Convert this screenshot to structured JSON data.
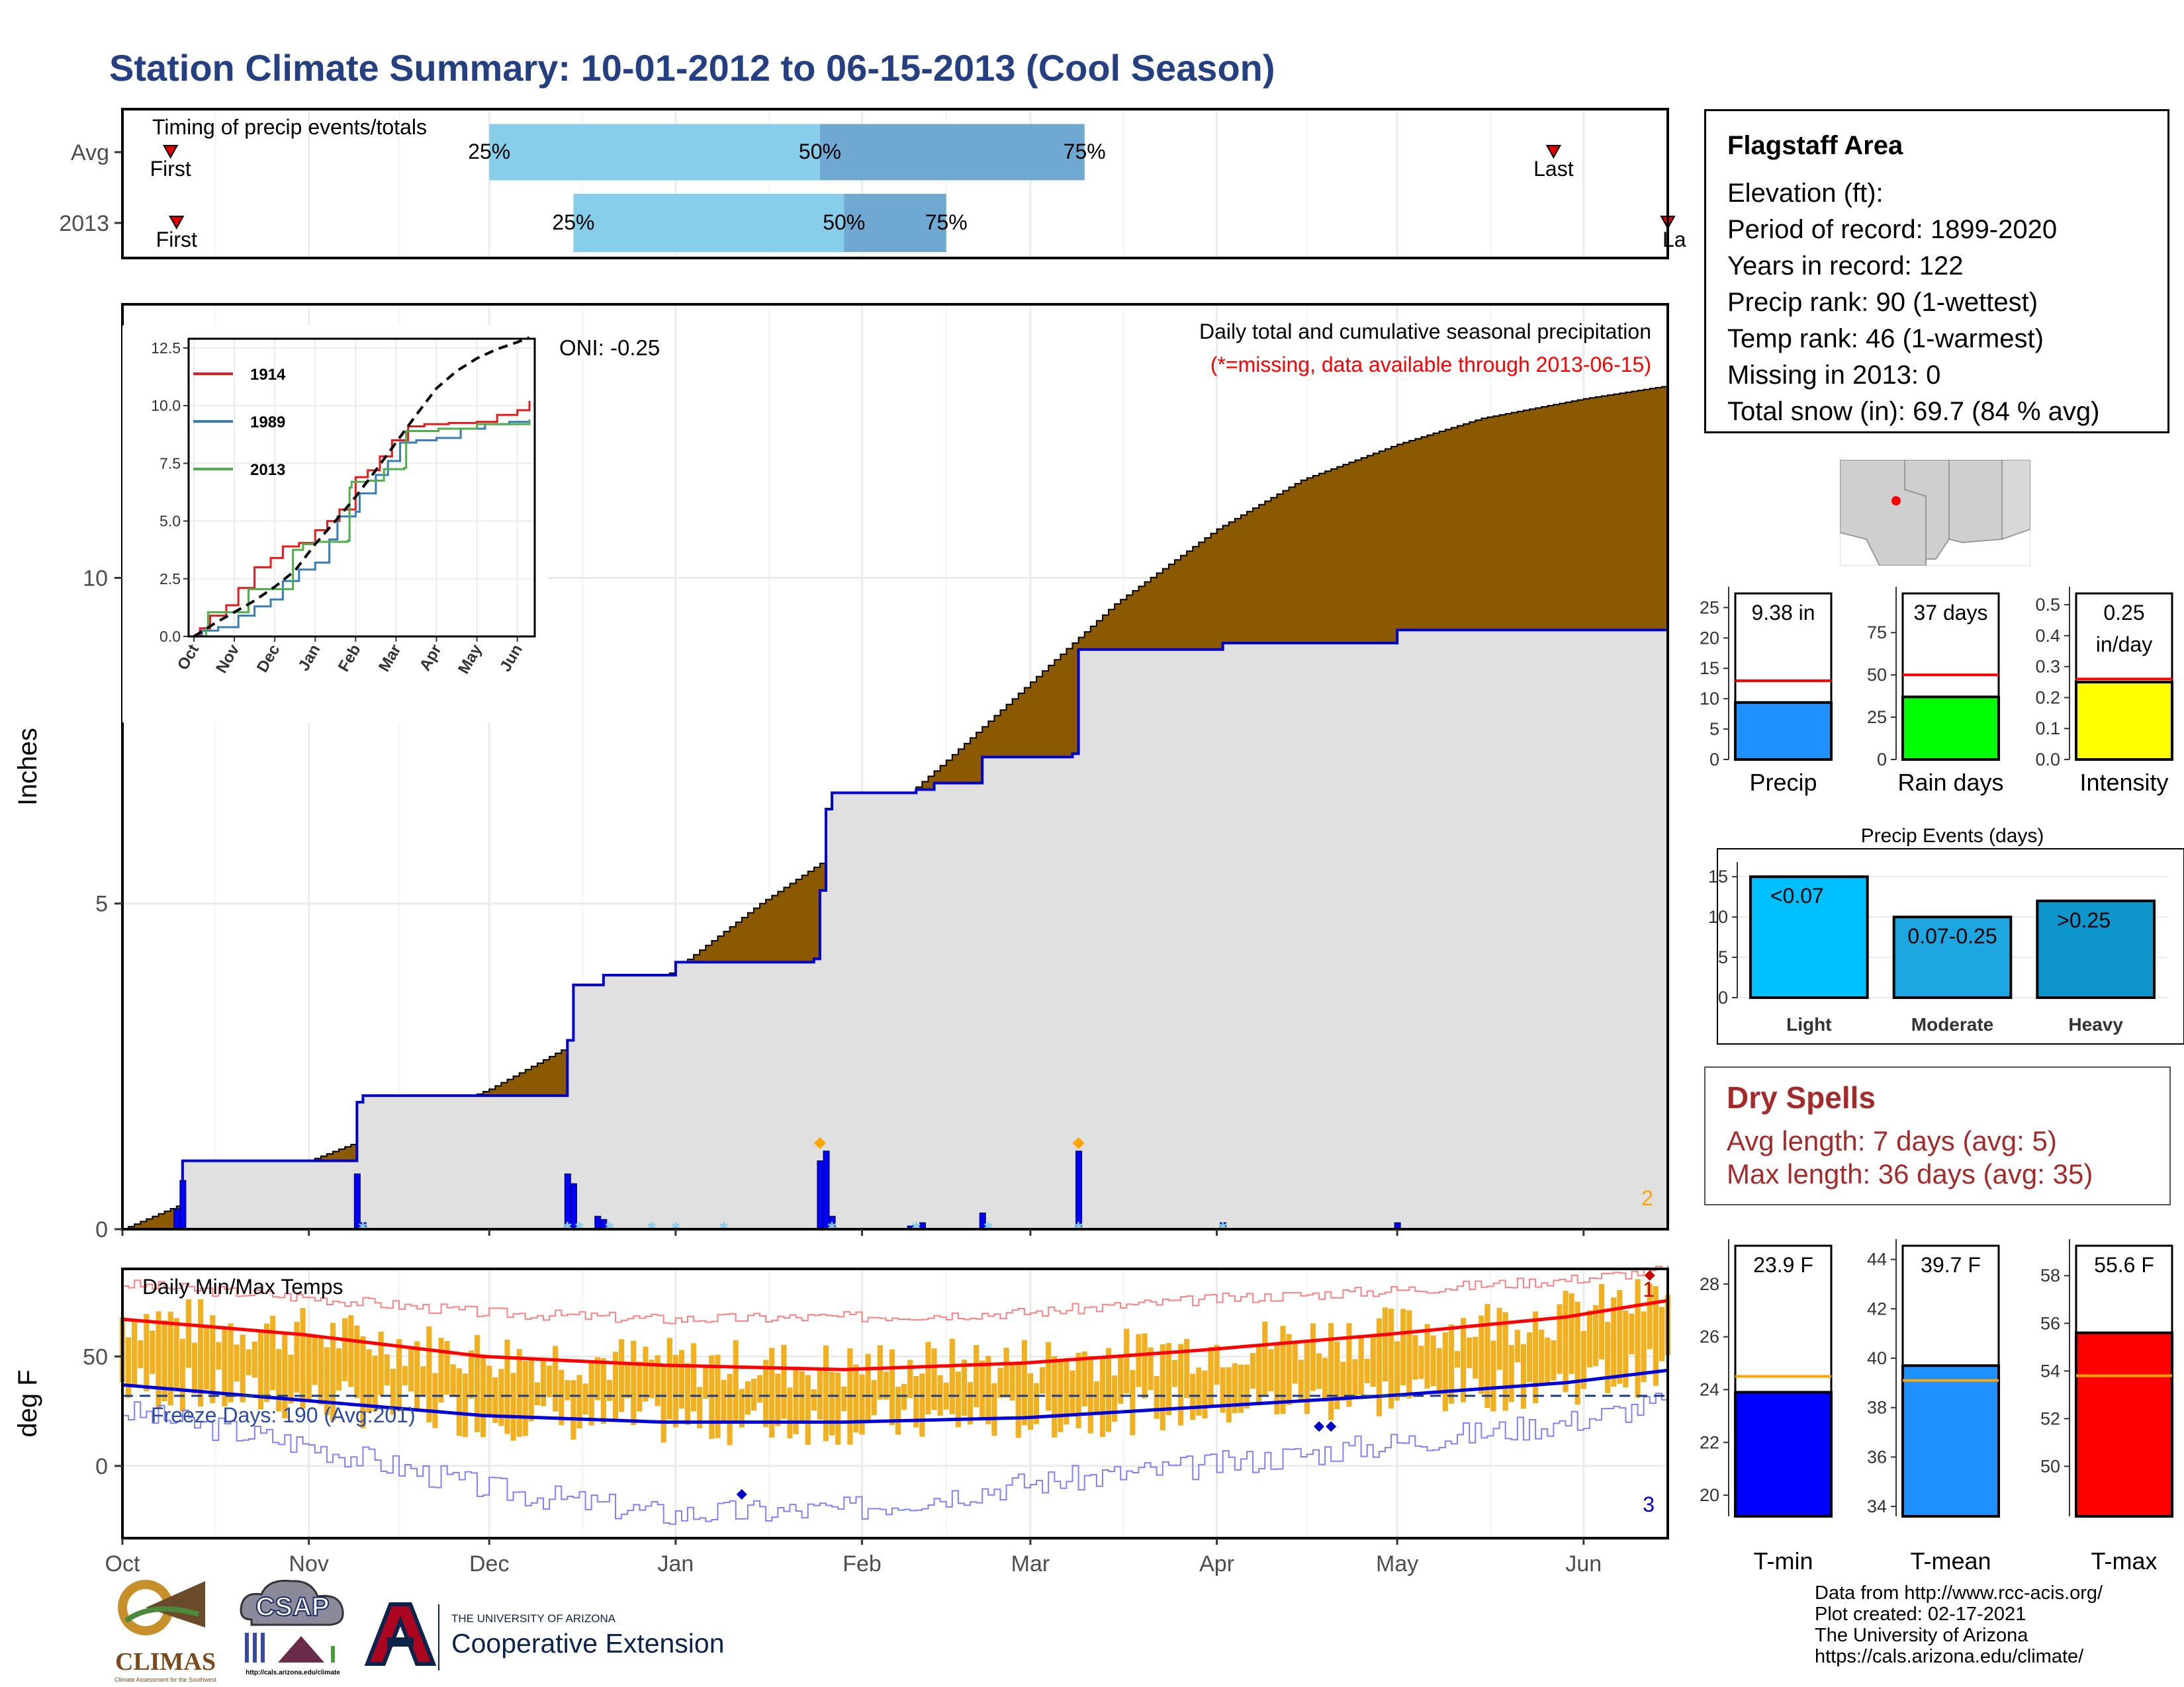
{
  "title": "Station Climate Summary: 10-01-2012 to 06-15-2013 (Cool Season)",
  "timing": {
    "panel_label": "Timing of precip events/totals",
    "rows": [
      {
        "label": "Avg",
        "first": "2012-10-09",
        "p25": "2012-12-01",
        "p50": "2013-01-25",
        "p75": "2013-03-10",
        "last": "2013-05-27"
      },
      {
        "label": "2013",
        "first": "2012-10-10",
        "p25": "2012-12-15",
        "p50": "2013-01-29",
        "p75": "2013-02-15",
        "last": "2013-06-15"
      }
    ],
    "first_label": "First",
    "last_label": "Last",
    "last_label_clipped": "La",
    "p25_label": "25%",
    "p50_label": "50%",
    "p75_label": "75%",
    "colors": {
      "q1": "#87ceeb",
      "q2": "#6fa8d0",
      "marker": "#e00000"
    }
  },
  "chart_data": [
    {
      "type": "area",
      "name": "precip",
      "title": "Daily total and cumulative seasonal precipitation",
      "subtitle": "(*=missing, data available through 2013-06-15)",
      "annotation": "ONI: -0.25",
      "corner_count": "2",
      "ylabel": "Inches",
      "ylim": [
        0,
        14.2
      ],
      "yticks": [
        0,
        5,
        10
      ],
      "x_start": "2012-10-01",
      "x_end": "2013-06-15",
      "avg_cumulative": [
        [
          "2012-10-01",
          0
        ],
        [
          "2012-10-15",
          0.55
        ],
        [
          "2012-11-01",
          1.05
        ],
        [
          "2012-11-15",
          1.55
        ],
        [
          "2012-12-01",
          2.15
        ],
        [
          "2012-12-15",
          2.85
        ],
        [
          "2013-01-01",
          4.0
        ],
        [
          "2013-01-15",
          5.0
        ],
        [
          "2013-02-01",
          6.05
        ],
        [
          "2013-02-15",
          7.2
        ],
        [
          "2013-03-01",
          8.4
        ],
        [
          "2013-03-15",
          9.6
        ],
        [
          "2013-04-01",
          10.75
        ],
        [
          "2013-04-15",
          11.5
        ],
        [
          "2013-05-01",
          12.05
        ],
        [
          "2013-05-15",
          12.45
        ],
        [
          "2013-06-01",
          12.75
        ],
        [
          "2013-06-15",
          12.95
        ]
      ],
      "season_cumulative": [
        [
          "2012-10-01",
          0
        ],
        [
          "2012-10-10",
          0
        ],
        [
          "2012-10-10",
          0.3
        ],
        [
          "2012-10-11",
          1.05
        ],
        [
          "2012-11-08",
          1.05
        ],
        [
          "2012-11-09",
          1.95
        ],
        [
          "2012-11-10",
          2.05
        ],
        [
          "2012-12-13",
          2.05
        ],
        [
          "2012-12-14",
          2.9
        ],
        [
          "2012-12-15",
          3.75
        ],
        [
          "2012-12-20",
          3.9
        ],
        [
          "2013-01-01",
          4.1
        ],
        [
          "2013-01-24",
          4.15
        ],
        [
          "2013-01-25",
          5.2
        ],
        [
          "2013-01-26",
          6.45
        ],
        [
          "2013-01-27",
          6.7
        ],
        [
          "2013-02-10",
          6.75
        ],
        [
          "2013-02-13",
          6.85
        ],
        [
          "2013-02-21",
          7.25
        ],
        [
          "2013-03-08",
          7.3
        ],
        [
          "2013-03-09",
          8.9
        ],
        [
          "2013-04-01",
          8.9
        ],
        [
          "2013-04-02",
          9.0
        ],
        [
          "2013-04-30",
          9.0
        ],
        [
          "2013-05-01",
          9.2
        ],
        [
          "2013-06-15",
          9.38
        ]
      ],
      "daily_precip": [
        [
          "2012-10-10",
          0.3
        ],
        [
          "2012-10-11",
          0.75
        ],
        [
          "2012-11-09",
          0.85
        ],
        [
          "2012-11-10",
          0.1
        ],
        [
          "2012-12-14",
          0.85
        ],
        [
          "2012-12-15",
          0.7
        ],
        [
          "2012-12-19",
          0.2
        ],
        [
          "2012-12-20",
          0.15
        ],
        [
          "2013-01-25",
          1.05
        ],
        [
          "2013-01-26",
          1.2
        ],
        [
          "2013-01-27",
          0.2
        ],
        [
          "2013-02-09",
          0.05
        ],
        [
          "2013-02-11",
          0.1
        ],
        [
          "2013-02-21",
          0.25
        ],
        [
          "2013-03-09",
          1.2
        ],
        [
          "2013-04-02",
          0.1
        ],
        [
          "2013-05-01",
          0.1
        ]
      ],
      "snow_markers": [
        "2012-11-10",
        "2012-12-14",
        "2012-12-16",
        "2012-12-21",
        "2012-12-28",
        "2013-01-01",
        "2013-01-09",
        "2013-01-27",
        "2013-02-10",
        "2013-02-22",
        "2013-03-09",
        "2013-04-02"
      ],
      "extreme_markers": [
        "2013-01-25",
        "2013-03-09"
      ],
      "colors": {
        "avg_fill": "#8b5a00",
        "above_avg_fill": "#0a8a0a",
        "season_fill": "#e0e0e0",
        "season_line": "#0000cc",
        "daily_bar": "#0000ff",
        "snow": "#87ceeb",
        "extreme": "#ffa500"
      }
    },
    {
      "type": "line",
      "name": "inset",
      "categories": [
        "Oct",
        "Nov",
        "Dec",
        "Jan",
        "Feb",
        "Mar",
        "Apr",
        "May",
        "Jun"
      ],
      "ylim": [
        0,
        12.9
      ],
      "yticks": [
        "0.0",
        "2.5",
        "5.0",
        "7.5",
        "10.0",
        "12.5"
      ],
      "series": [
        {
          "name": "1914",
          "color": "#e41a1c",
          "points": [
            [
              0,
              0
            ],
            [
              0.15,
              0.35
            ],
            [
              0.4,
              0.9
            ],
            [
              0.8,
              1.35
            ],
            [
              1.1,
              2.1
            ],
            [
              1.5,
              3.0
            ],
            [
              1.9,
              3.4
            ],
            [
              2.2,
              3.9
            ],
            [
              2.6,
              4.05
            ],
            [
              3.0,
              4.6
            ],
            [
              3.3,
              5.0
            ],
            [
              3.6,
              5.5
            ],
            [
              4.0,
              6.9
            ],
            [
              4.3,
              7.2
            ],
            [
              4.6,
              7.8
            ],
            [
              4.9,
              8.5
            ],
            [
              5.3,
              9.1
            ],
            [
              5.7,
              9.2
            ],
            [
              6.3,
              9.25
            ],
            [
              7.0,
              9.3
            ],
            [
              7.5,
              9.6
            ],
            [
              8.0,
              9.8
            ],
            [
              8.3,
              10.2
            ]
          ]
        },
        {
          "name": "1989",
          "color": "#377eb8",
          "points": [
            [
              0,
              0
            ],
            [
              0.2,
              0.25
            ],
            [
              0.6,
              0.4
            ],
            [
              1.1,
              0.9
            ],
            [
              1.5,
              1.3
            ],
            [
              1.9,
              1.6
            ],
            [
              2.2,
              2.4
            ],
            [
              2.6,
              2.9
            ],
            [
              3.0,
              3.2
            ],
            [
              3.35,
              4.2
            ],
            [
              3.55,
              5.2
            ],
            [
              4.0,
              5.4
            ],
            [
              4.1,
              6.2
            ],
            [
              4.5,
              7.0
            ],
            [
              4.8,
              7.6
            ],
            [
              5.1,
              8.4
            ],
            [
              5.5,
              8.5
            ],
            [
              6.0,
              8.6
            ],
            [
              6.6,
              9.0
            ],
            [
              7.2,
              9.2
            ],
            [
              7.8,
              9.3
            ],
            [
              8.3,
              9.4
            ]
          ]
        },
        {
          "name": "2013",
          "color": "#4daf4a",
          "points": [
            [
              0,
              0
            ],
            [
              0.3,
              0.3
            ],
            [
              0.35,
              1.05
            ],
            [
              1.3,
              1.05
            ],
            [
              1.35,
              2.05
            ],
            [
              2.4,
              2.05
            ],
            [
              2.45,
              3.75
            ],
            [
              2.7,
              4.0
            ],
            [
              3.0,
              4.1
            ],
            [
              3.8,
              4.15
            ],
            [
              3.85,
              6.45
            ],
            [
              3.9,
              6.7
            ],
            [
              4.3,
              6.75
            ],
            [
              4.7,
              7.25
            ],
            [
              5.2,
              7.3
            ],
            [
              5.25,
              8.9
            ],
            [
              6.0,
              8.9
            ],
            [
              6.05,
              9.0
            ],
            [
              6.95,
              9.0
            ],
            [
              7.0,
              9.2
            ],
            [
              8.3,
              9.38
            ]
          ]
        },
        {
          "name": "avg",
          "color": "#000000",
          "dashed": true,
          "points": [
            [
              0,
              0
            ],
            [
              0.5,
              0.55
            ],
            [
              1.0,
              1.05
            ],
            [
              1.5,
              1.55
            ],
            [
              2.0,
              2.15
            ],
            [
              2.5,
              2.85
            ],
            [
              3.0,
              4.0
            ],
            [
              3.5,
              5.0
            ],
            [
              4.0,
              6.05
            ],
            [
              4.5,
              7.2
            ],
            [
              5.0,
              8.4
            ],
            [
              5.5,
              9.6
            ],
            [
              6.0,
              10.75
            ],
            [
              6.5,
              11.5
            ],
            [
              7.0,
              12.05
            ],
            [
              7.5,
              12.45
            ],
            [
              8.0,
              12.75
            ],
            [
              8.3,
              12.95
            ]
          ]
        }
      ]
    },
    {
      "type": "bar",
      "name": "precip_total",
      "value_label": "9.38 in",
      "xlabel": "Precip",
      "value": 9.38,
      "avg": 12.95,
      "ylim": [
        0,
        27
      ],
      "yticks": [
        "0",
        "5",
        "10",
        "15",
        "20",
        "25"
      ],
      "bar_color": "#1e90ff",
      "avg_color": "#ff0000"
    },
    {
      "type": "bar",
      "name": "rain_days",
      "value_label": "37 days",
      "xlabel": "Rain days",
      "value": 37,
      "avg": 50,
      "ylim": [
        0,
        97
      ],
      "yticks": [
        "0",
        "25",
        "50",
        "75"
      ],
      "bar_color": "#00ff00",
      "avg_color": "#ff0000"
    },
    {
      "type": "bar",
      "name": "intensity",
      "value_label": "0.25",
      "value_label2": "in/day",
      "xlabel": "Intensity",
      "value": 0.25,
      "avg": 0.26,
      "ylim": [
        0,
        0.53
      ],
      "yticks": [
        "0.0",
        "0.1",
        "0.2",
        "0.3",
        "0.4",
        "0.5"
      ],
      "bar_color": "#ffff00",
      "avg_color": "#ff0000"
    },
    {
      "type": "bar",
      "name": "precip_events",
      "title": "Precip Events (days)",
      "categories": [
        "Light",
        "Moderate",
        "Heavy"
      ],
      "inner_labels": [
        "<0.07",
        "0.07-0.25",
        ">0.25"
      ],
      "values": [
        15,
        10,
        12
      ],
      "ylim": [
        0,
        16
      ],
      "yticks": [
        "0",
        "5",
        "10",
        "15"
      ],
      "colors": [
        "#00bfff",
        "#1ea6e0",
        "#0e96cc"
      ]
    },
    {
      "type": "bar",
      "name": "daily_temps",
      "title": "Daily Min/Max Temps",
      "ylabel": "deg F",
      "ylim": [
        -33,
        90
      ],
      "yticks": [
        0,
        50
      ],
      "x_start": "2012-10-01",
      "x_end": "2013-06-15",
      "freeze_label": "Freeze Days: 190 (Avg:201)",
      "freeze_line": 32,
      "count_high": "1",
      "count_low": "3",
      "avg_max_knots": [
        [
          0,
          67
        ],
        [
          30,
          60
        ],
        [
          60,
          50
        ],
        [
          90,
          46
        ],
        [
          120,
          44
        ],
        [
          150,
          47
        ],
        [
          180,
          53
        ],
        [
          210,
          60
        ],
        [
          240,
          68
        ],
        [
          258,
          76
        ]
      ],
      "avg_min_knots": [
        [
          0,
          37
        ],
        [
          30,
          30
        ],
        [
          60,
          23
        ],
        [
          90,
          20
        ],
        [
          120,
          20
        ],
        [
          150,
          22
        ],
        [
          180,
          27
        ],
        [
          210,
          32
        ],
        [
          240,
          38
        ],
        [
          258,
          44
        ]
      ],
      "rec_max_knots": [
        [
          0,
          83
        ],
        [
          30,
          77
        ],
        [
          60,
          70
        ],
        [
          90,
          67
        ],
        [
          120,
          68
        ],
        [
          150,
          70
        ],
        [
          180,
          76
        ],
        [
          210,
          80
        ],
        [
          240,
          85
        ],
        [
          258,
          90
        ]
      ],
      "rec_min_knots": [
        [
          0,
          25
        ],
        [
          30,
          10
        ],
        [
          60,
          -10
        ],
        [
          90,
          -22
        ],
        [
          120,
          -20
        ],
        [
          150,
          -8
        ],
        [
          180,
          0
        ],
        [
          210,
          10
        ],
        [
          240,
          20
        ],
        [
          258,
          30
        ]
      ],
      "colors": {
        "bar": "#f0b020",
        "bar_edge": "#d89a10",
        "avg_max": "#ff0000",
        "avg_min": "#0000dd",
        "rec_max": "#ff8080",
        "rec_min": "#8080ff",
        "freeze": "#1a3a8a",
        "count_high": "#cc0000",
        "count_low": "#0000cc"
      }
    },
    {
      "type": "bar",
      "name": "tmin",
      "value_label": "23.9 F",
      "xlabel": "T-min",
      "value": 23.9,
      "avg": 24.5,
      "ylim": [
        19.2,
        29.4
      ],
      "yticks": [
        "20",
        "22",
        "24",
        "26",
        "28"
      ],
      "bar_color": "#0000ff",
      "avg_color": "#ffa500"
    },
    {
      "type": "bar",
      "name": "tmean",
      "value_label": "39.7 F",
      "xlabel": "T-mean",
      "value": 39.7,
      "avg": 39.1,
      "ylim": [
        33.6,
        44.5
      ],
      "yticks": [
        "34",
        "36",
        "38",
        "40",
        "42",
        "44"
      ],
      "bar_color": "#1e90ff",
      "avg_color": "#ffa500"
    },
    {
      "type": "bar",
      "name": "tmax",
      "value_label": "55.6 F",
      "xlabel": "T-max",
      "value": 55.6,
      "avg": 53.8,
      "ylim": [
        47.9,
        59.2
      ],
      "yticks": [
        "50",
        "52",
        "54",
        "56",
        "58"
      ],
      "bar_color": "#ff0000",
      "avg_color": "#ffa500"
    }
  ],
  "x_axis_months": [
    "Oct",
    "Nov",
    "Dec",
    "Jan",
    "Feb",
    "Mar",
    "Apr",
    "May",
    "Jun"
  ],
  "info": {
    "station": "Flagstaff Area",
    "lines": [
      "Elevation (ft):",
      "Period of record: 1899-2020",
      "Years in record: 122",
      "Precip rank: 90 (1-wettest)",
      "Temp rank: 46 (1-warmest)",
      "Missing in 2013: 0",
      "Total snow (in): 69.7 (84 % avg)"
    ]
  },
  "dry_spells": {
    "title": "Dry Spells",
    "avg_line": "Avg length: 7 days (avg: 5)",
    "max_line": "Max length: 36 days (avg: 35)"
  },
  "footer": {
    "lines": [
      "Data from http://www.rcc-acis.org/",
      "Plot created: 02-17-2021",
      "The University of Arizona",
      "https://cals.arizona.edu/climate/"
    ]
  },
  "logos": {
    "climas": "CLIMAS",
    "climas_sub": "Climate Assessment for the Southwest",
    "csap": "CSAP",
    "csap_url": "http://cals.arizona.edu/climate",
    "ua_small": "THE UNIVERSITY OF ARIZONA",
    "ua_big": "Cooperative Extension"
  }
}
